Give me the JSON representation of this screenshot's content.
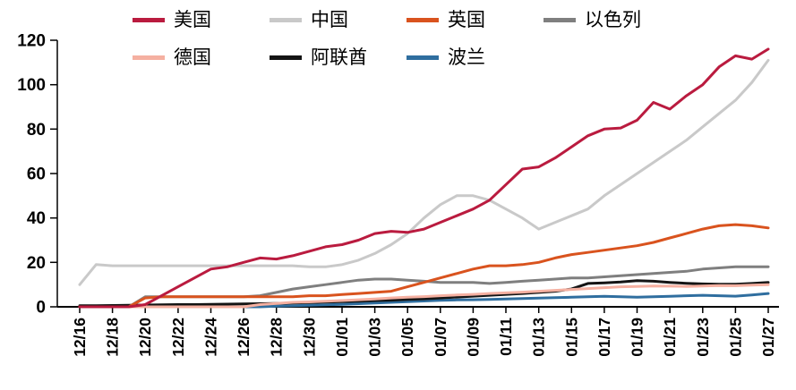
{
  "chart_data": {
    "type": "line",
    "title": "",
    "xlabel": "",
    "ylabel": "",
    "ylim": [
      0,
      120
    ],
    "yticks": [
      0,
      20,
      40,
      60,
      80,
      100,
      120
    ],
    "grid": false,
    "legend_position": "top",
    "x_tick_every": 2,
    "x": [
      "12/16",
      "12/17",
      "12/18",
      "12/19",
      "12/20",
      "12/21",
      "12/22",
      "12/23",
      "12/24",
      "12/25",
      "12/26",
      "12/27",
      "12/28",
      "12/29",
      "12/30",
      "12/31",
      "01/01",
      "01/02",
      "01/03",
      "01/04",
      "01/05",
      "01/06",
      "01/07",
      "01/08",
      "01/09",
      "01/10",
      "01/11",
      "01/12",
      "01/13",
      "01/14",
      "01/15",
      "01/16",
      "01/17",
      "01/18",
      "01/19",
      "01/20",
      "01/21",
      "01/22",
      "01/23",
      "01/24",
      "01/25",
      "01/26",
      "01/27"
    ],
    "series": [
      {
        "name": "美国",
        "color": "#ba1b3f",
        "values": [
          0,
          0,
          0,
          0,
          1,
          5,
          9,
          13,
          17,
          18,
          20,
          22,
          21.5,
          23,
          25,
          27,
          28,
          30,
          33,
          34,
          33.5,
          35,
          38,
          41,
          44,
          48,
          55,
          62,
          63,
          67,
          72,
          77,
          80,
          80.5,
          84,
          92,
          89,
          95,
          100,
          108,
          113,
          111.5,
          116
        ]
      },
      {
        "name": "中国",
        "color": "#c9c9c9",
        "values": [
          10,
          19,
          18.5,
          18.5,
          18.5,
          18.5,
          18.5,
          18.5,
          18.5,
          18.5,
          18.5,
          18.5,
          18.5,
          18.5,
          18,
          18,
          19,
          21,
          24,
          28,
          33,
          40,
          46,
          50,
          50,
          48,
          44,
          40,
          35,
          38,
          41,
          44,
          50,
          55,
          60,
          65,
          70,
          75,
          81,
          87,
          93,
          101,
          111
        ]
      },
      {
        "name": "英国",
        "color": "#d9531e",
        "values": [
          0,
          0,
          0,
          0,
          4,
          4.5,
          4.5,
          4.5,
          4.5,
          4.5,
          4.5,
          4.5,
          4.5,
          4.5,
          5,
          5,
          5.5,
          6,
          6.5,
          7,
          9,
          11,
          13,
          15,
          17,
          18.5,
          18.5,
          19,
          20,
          22,
          23.5,
          24.5,
          25.5,
          26.5,
          27.5,
          29,
          31,
          33,
          35,
          36.5,
          37,
          36.5,
          35.5
        ]
      },
      {
        "name": "以色列",
        "color": "#7f7f7f",
        "values": [
          0,
          0,
          0,
          0,
          4.5,
          4.5,
          4.5,
          4.5,
          4.5,
          4.5,
          4.5,
          5,
          6.5,
          8,
          9,
          10,
          11,
          12,
          12.5,
          12.5,
          12,
          11.5,
          11,
          11,
          11,
          10.5,
          11,
          11.5,
          12,
          12.5,
          13,
          13,
          13.5,
          14,
          14.5,
          15,
          15.5,
          16,
          17,
          17.5,
          18,
          18,
          18
        ]
      },
      {
        "name": "德国",
        "color": "#f5b0a1",
        "values": [
          0,
          0,
          0,
          0,
          0,
          0,
          0,
          0,
          0,
          0,
          0,
          1,
          1.5,
          2,
          2.2,
          2.5,
          2.8,
          3.2,
          3.5,
          4,
          4.3,
          4.6,
          5,
          5.3,
          5.6,
          6,
          6.3,
          6.6,
          7,
          7.4,
          7.8,
          8.2,
          8.6,
          9,
          9.2,
          9.4,
          9.3,
          9.2,
          9.4,
          9.6,
          9.5,
          9.8,
          10
        ]
      },
      {
        "name": "阿联酋",
        "color": "#141414",
        "values": [
          0.5,
          0.5,
          0.6,
          0.7,
          0.8,
          0.9,
          1,
          1,
          1.1,
          1.2,
          1.3,
          1.4,
          1.5,
          1.7,
          1.9,
          2.1,
          2.3,
          2.5,
          2.8,
          3,
          3.3,
          3.6,
          4,
          4.4,
          4.8,
          5.2,
          5.6,
          6,
          6.5,
          7,
          8,
          10.5,
          10.8,
          11.2,
          11.8,
          11.5,
          11,
          10.6,
          10.3,
          10.2,
          10.2,
          10.5,
          11
        ]
      },
      {
        "name": "波兰",
        "color": "#2f6e9f",
        "values": [
          0,
          0,
          0,
          0,
          0,
          0,
          0,
          0,
          0,
          0,
          0,
          0,
          0.3,
          0.5,
          0.7,
          0.9,
          1.1,
          1.4,
          1.7,
          2,
          2.3,
          2.6,
          2.9,
          3.1,
          3.2,
          3.3,
          3.5,
          3.7,
          3.9,
          4.1,
          4.3,
          4.5,
          4.7,
          4.5,
          4.3,
          4.5,
          4.7,
          5,
          5.2,
          5,
          4.8,
          5.3,
          6
        ]
      }
    ]
  }
}
